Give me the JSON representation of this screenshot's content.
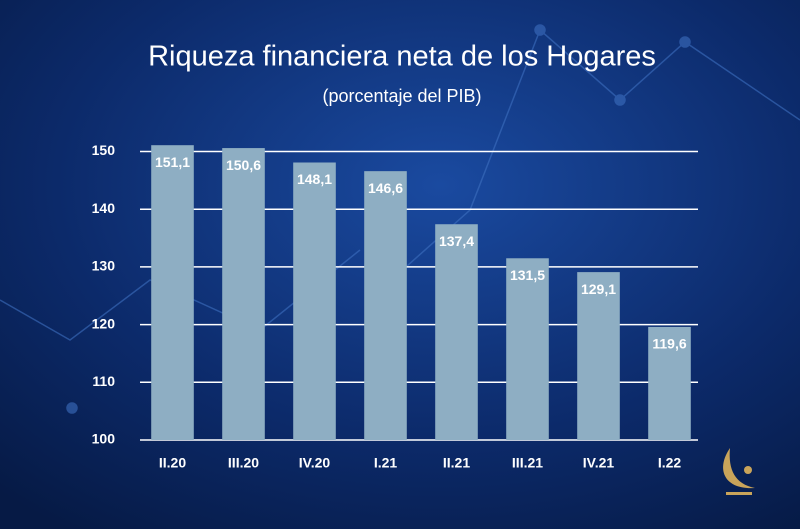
{
  "chart_data": {
    "type": "bar",
    "title": "Riqueza financiera neta de los Hogares",
    "subtitle": "(porcentaje del PIB)",
    "categories": [
      "II.20",
      "III.20",
      "IV.20",
      "I.21",
      "II.21",
      "III.21",
      "IV.21",
      "I.22"
    ],
    "values": [
      151.1,
      150.6,
      148.1,
      146.6,
      137.4,
      131.5,
      129.1,
      119.6
    ],
    "value_labels": [
      "151,1",
      "150,6",
      "148,1",
      "146,6",
      "137,4",
      "131,5",
      "129,1",
      "119,6"
    ],
    "color": "#8eaec3",
    "ylim": [
      100,
      152
    ],
    "yticks": [
      100,
      110,
      120,
      130,
      140,
      150
    ],
    "grid": true
  }
}
